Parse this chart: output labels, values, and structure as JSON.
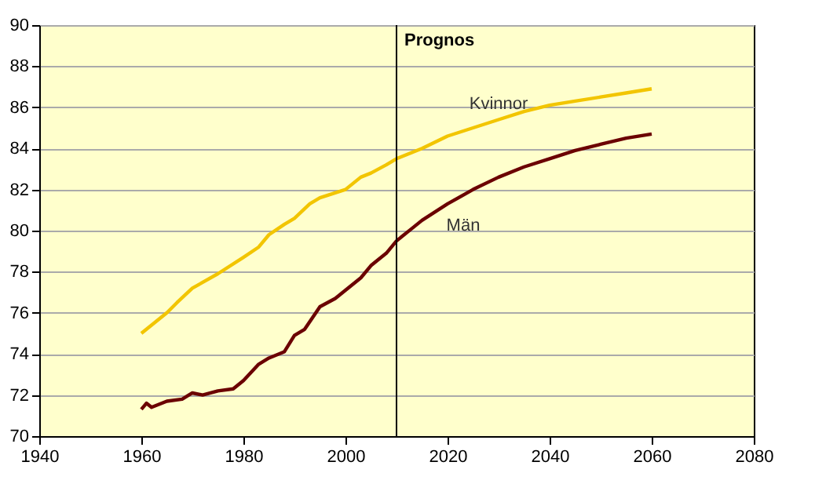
{
  "chart_data": {
    "type": "line",
    "xlim": [
      1940,
      2080
    ],
    "xticks": [
      1940,
      1960,
      1980,
      2000,
      2020,
      2040,
      2060,
      2080
    ],
    "ylim": [
      70,
      90
    ],
    "yticks": [
      70,
      72,
      74,
      76,
      78,
      80,
      82,
      84,
      86,
      88,
      90
    ],
    "grid": "y",
    "marker": "none",
    "line_style": "solid",
    "series": [
      {
        "name": "Kvinnor",
        "color": "#f2c500",
        "x": [
          1960,
          1962,
          1965,
          1967,
          1970,
          1975,
          1980,
          1983,
          1985,
          1988,
          1990,
          1993,
          1995,
          2000,
          2003,
          2005,
          2008,
          2010,
          2015,
          2020,
          2025,
          2030,
          2035,
          2040,
          2045,
          2050,
          2055,
          2060
        ],
        "values": [
          75.0,
          75.4,
          76.0,
          76.5,
          77.2,
          77.9,
          78.7,
          79.2,
          79.8,
          80.3,
          80.6,
          81.3,
          81.6,
          82.0,
          82.6,
          82.8,
          83.2,
          83.5,
          84.0,
          84.6,
          85.0,
          85.4,
          85.8,
          86.1,
          86.3,
          86.5,
          86.7,
          86.9
        ]
      },
      {
        "name": "Män",
        "color": "#6b0000",
        "x": [
          1960,
          1961,
          1962,
          1965,
          1968,
          1970,
          1972,
          1975,
          1978,
          1980,
          1983,
          1985,
          1988,
          1990,
          1992,
          1995,
          1998,
          2000,
          2003,
          2005,
          2008,
          2010,
          2013,
          2015,
          2020,
          2025,
          2030,
          2035,
          2040,
          2045,
          2050,
          2055,
          2060
        ],
        "values": [
          71.3,
          71.6,
          71.4,
          71.7,
          71.8,
          72.1,
          72.0,
          72.2,
          72.3,
          72.7,
          73.5,
          73.8,
          74.1,
          74.9,
          75.2,
          76.3,
          76.7,
          77.1,
          77.7,
          78.3,
          78.9,
          79.5,
          80.1,
          80.5,
          81.3,
          82.0,
          82.6,
          83.1,
          83.5,
          83.9,
          84.2,
          84.5,
          84.7
        ]
      }
    ],
    "ref_lines": [
      {
        "axis": "x",
        "value": 2010,
        "label": "Prognos",
        "color": "#000000"
      }
    ]
  }
}
